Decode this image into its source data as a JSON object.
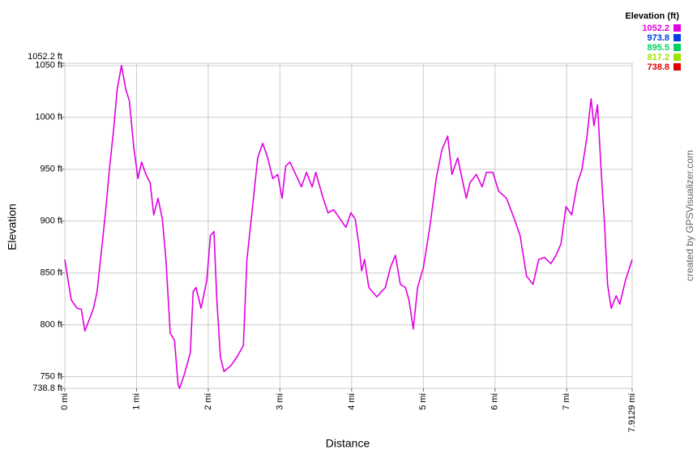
{
  "chart_data": {
    "type": "line",
    "x_label": "Distance",
    "y_label": "Elevation",
    "credit": "created by GPSVisualizer.com",
    "x": [
      0,
      0.045,
      0.09,
      0.17,
      0.23,
      0.28,
      0.4,
      0.45,
      0.51,
      0.57,
      0.62,
      0.68,
      0.73,
      0.79,
      0.85,
      0.9,
      0.96,
      1.02,
      1.07,
      1.13,
      1.19,
      1.24,
      1.3,
      1.36,
      1.41,
      1.47,
      1.53,
      1.58,
      1.6,
      1.67,
      1.75,
      1.79,
      1.83,
      1.9,
      1.98,
      2.03,
      2.08,
      2.12,
      2.17,
      2.22,
      2.32,
      2.4,
      2.49,
      2.54,
      2.6,
      2.69,
      2.76,
      2.83,
      2.9,
      2.97,
      3.03,
      3.08,
      3.14,
      3.22,
      3.3,
      3.37,
      3.45,
      3.5,
      3.59,
      3.67,
      3.75,
      3.84,
      3.92,
      3.99,
      4.05,
      4.1,
      4.14,
      4.18,
      4.24,
      4.35,
      4.47,
      4.54,
      4.61,
      4.68,
      4.75,
      4.8,
      4.86,
      4.92,
      5,
      5.09,
      5.18,
      5.26,
      5.34,
      5.4,
      5.48,
      5.54,
      5.6,
      5.65,
      5.74,
      5.82,
      5.88,
      5.97,
      6.05,
      6.16,
      6.27,
      6.35,
      6.44,
      6.53,
      6.61,
      6.69,
      6.78,
      6.85,
      6.92,
      6.99,
      7.07,
      7.15,
      7.21,
      7.28,
      7.34,
      7.38,
      7.43,
      7.48,
      7.53,
      7.57,
      7.62,
      7.69,
      7.74,
      7.82,
      7.9129
    ],
    "values": [
      863,
      843,
      824,
      816,
      815,
      794,
      816,
      832,
      871,
      910,
      949,
      988,
      1027,
      1050,
      1027,
      1016,
      972,
      941,
      957,
      945,
      937,
      906,
      922,
      902,
      863,
      792,
      785,
      742,
      738.8,
      753,
      773,
      832,
      836,
      816,
      843,
      886,
      890,
      824,
      769,
      755,
      761,
      769,
      780,
      863,
      902,
      961,
      975,
      961,
      941,
      945,
      922,
      953,
      957,
      945,
      933,
      947,
      933,
      947,
      925,
      908,
      911,
      902,
      894,
      908,
      902,
      878,
      852,
      863,
      836,
      827,
      836,
      855,
      867,
      839,
      836,
      824,
      796,
      836,
      855,
      894,
      941,
      969,
      982,
      945,
      961,
      941,
      922,
      937,
      945,
      933,
      947,
      947,
      929,
      922,
      902,
      886,
      847,
      839,
      863,
      865,
      859,
      867,
      878,
      914,
      906,
      937,
      949,
      980,
      1018,
      992,
      1012,
      949,
      894,
      839,
      816,
      828,
      820,
      843,
      863
    ],
    "xlim": [
      0,
      7.9129
    ],
    "ylim": [
      738.8,
      1052.2
    ],
    "xticks": [
      {
        "value": 0,
        "label": "0 mi"
      },
      {
        "value": 1,
        "label": "1 mi"
      },
      {
        "value": 2,
        "label": "2 mi"
      },
      {
        "value": 3,
        "label": "3 mi"
      },
      {
        "value": 4,
        "label": "4 mi"
      },
      {
        "value": 5,
        "label": "5 mi"
      },
      {
        "value": 6,
        "label": "6 mi"
      },
      {
        "value": 7,
        "label": "7 mi"
      },
      {
        "value": 7.9129,
        "label": "7.9129 mi"
      }
    ],
    "yticks": [
      {
        "value": 738.8,
        "label": "738.8 ft"
      },
      {
        "value": 750,
        "label": "750 ft"
      },
      {
        "value": 800,
        "label": "800 ft"
      },
      {
        "value": 850,
        "label": "850 ft"
      },
      {
        "value": 900,
        "label": "900 ft"
      },
      {
        "value": 950,
        "label": "950 ft"
      },
      {
        "value": 1000,
        "label": "1000 ft"
      },
      {
        "value": 1050,
        "label": "1050 ft"
      },
      {
        "value": 1052.2,
        "label": "1052.2 ft"
      }
    ],
    "grid": true,
    "legend": {
      "title": "Elevation (ft)",
      "items": [
        {
          "value": 1052.2,
          "color": "#e000e0"
        },
        {
          "value": 973.8,
          "color": "#0040e0"
        },
        {
          "value": 895.5,
          "color": "#00d060"
        },
        {
          "value": 817.2,
          "color": "#a0e000"
        },
        {
          "value": 738.8,
          "color": "#e00000"
        }
      ]
    }
  }
}
